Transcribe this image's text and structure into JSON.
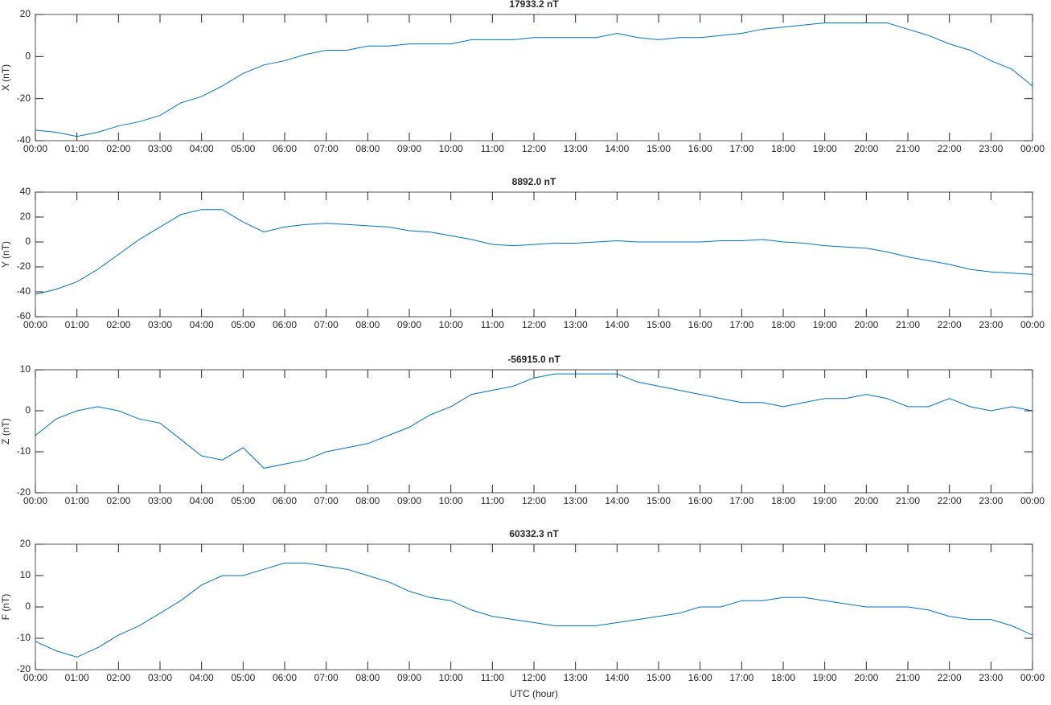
{
  "chart_data": [
    {
      "type": "line",
      "title": "17933.2 nT",
      "ylabel": "X (nT)",
      "color": "#0072bd",
      "x": [
        0,
        0.5,
        1,
        1.5,
        2,
        2.5,
        3,
        3.5,
        4,
        4.5,
        5,
        5.5,
        6,
        6.5,
        7,
        7.5,
        8,
        8.5,
        9,
        9.5,
        10,
        10.5,
        11,
        11.5,
        12,
        12.5,
        13,
        13.5,
        14,
        14.5,
        15,
        15.5,
        16,
        16.5,
        17,
        17.5,
        18,
        18.5,
        19,
        19.5,
        20,
        20.5,
        21,
        21.5,
        22,
        22.5,
        23,
        23.5,
        24
      ],
      "values": [
        -35,
        -36,
        -38,
        -36,
        -33,
        -31,
        -28,
        -22,
        -19,
        -14,
        -8,
        -4,
        -2,
        1,
        3,
        3,
        5,
        5,
        6,
        6,
        6,
        8,
        8,
        8,
        9,
        9,
        9,
        9,
        11,
        9,
        8,
        9,
        9,
        10,
        11,
        13,
        14,
        15,
        16,
        16,
        16,
        16,
        13,
        10,
        6,
        3,
        -2,
        -6,
        -14
      ],
      "xlim": [
        0,
        24
      ],
      "ylim": [
        -40,
        20
      ],
      "yticks": [
        -40,
        -20,
        0,
        20
      ],
      "xticks": [
        {
          "value": 0,
          "label": "00:00"
        },
        {
          "value": 1,
          "label": "01:00"
        },
        {
          "value": 2,
          "label": "02:00"
        },
        {
          "value": 3,
          "label": "03:00"
        },
        {
          "value": 4,
          "label": "04:00"
        },
        {
          "value": 5,
          "label": "05:00"
        },
        {
          "value": 6,
          "label": "06:00"
        },
        {
          "value": 7,
          "label": "07:00"
        },
        {
          "value": 8,
          "label": "08:00"
        },
        {
          "value": 9,
          "label": "09:00"
        },
        {
          "value": 10,
          "label": "10:00"
        },
        {
          "value": 11,
          "label": "11:00"
        },
        {
          "value": 12,
          "label": "12:00"
        },
        {
          "value": 13,
          "label": "13:00"
        },
        {
          "value": 14,
          "label": "14:00"
        },
        {
          "value": 15,
          "label": "15:00"
        },
        {
          "value": 16,
          "label": "16:00"
        },
        {
          "value": 17,
          "label": "17:00"
        },
        {
          "value": 18,
          "label": "18:00"
        },
        {
          "value": 19,
          "label": "19:00"
        },
        {
          "value": 20,
          "label": "20:00"
        },
        {
          "value": 21,
          "label": "21:00"
        },
        {
          "value": 22,
          "label": "22:00"
        },
        {
          "value": 23,
          "label": "23:00"
        },
        {
          "value": 24,
          "label": "00:00"
        }
      ]
    },
    {
      "type": "line",
      "title": "8892.0 nT",
      "ylabel": "Y (nT)",
      "color": "#0072bd",
      "x": [
        0,
        0.5,
        1,
        1.5,
        2,
        2.5,
        3,
        3.5,
        4,
        4.5,
        5,
        5.5,
        6,
        6.5,
        7,
        7.5,
        8,
        8.5,
        9,
        9.5,
        10,
        10.5,
        11,
        11.5,
        12,
        12.5,
        13,
        13.5,
        14,
        14.5,
        15,
        15.5,
        16,
        16.5,
        17,
        17.5,
        18,
        18.5,
        19,
        19.5,
        20,
        20.5,
        21,
        21.5,
        22,
        22.5,
        23,
        23.5,
        24
      ],
      "values": [
        -42,
        -38,
        -32,
        -22,
        -10,
        2,
        12,
        22,
        26,
        26,
        16,
        8,
        12,
        14,
        15,
        14,
        13,
        12,
        9,
        8,
        5,
        2,
        -2,
        -3,
        -2,
        -1,
        -1,
        0,
        1,
        0,
        0,
        0,
        0,
        1,
        1,
        2,
        0,
        -1,
        -3,
        -4,
        -5,
        -8,
        -12,
        -15,
        -18,
        -22,
        -24,
        -25,
        -26
      ],
      "xlim": [
        0,
        24
      ],
      "ylim": [
        -60,
        40
      ],
      "yticks": [
        -60,
        -40,
        -20,
        0,
        20,
        40
      ],
      "xticks": [
        {
          "value": 0,
          "label": "00:00"
        },
        {
          "value": 1,
          "label": "01:00"
        },
        {
          "value": 2,
          "label": "02:00"
        },
        {
          "value": 3,
          "label": "03:00"
        },
        {
          "value": 4,
          "label": "04:00"
        },
        {
          "value": 5,
          "label": "05:00"
        },
        {
          "value": 6,
          "label": "06:00"
        },
        {
          "value": 7,
          "label": "07:00"
        },
        {
          "value": 8,
          "label": "08:00"
        },
        {
          "value": 9,
          "label": "09:00"
        },
        {
          "value": 10,
          "label": "10:00"
        },
        {
          "value": 11,
          "label": "11:00"
        },
        {
          "value": 12,
          "label": "12:00"
        },
        {
          "value": 13,
          "label": "13:00"
        },
        {
          "value": 14,
          "label": "14:00"
        },
        {
          "value": 15,
          "label": "15:00"
        },
        {
          "value": 16,
          "label": "16:00"
        },
        {
          "value": 17,
          "label": "17:00"
        },
        {
          "value": 18,
          "label": "18:00"
        },
        {
          "value": 19,
          "label": "19:00"
        },
        {
          "value": 20,
          "label": "20:00"
        },
        {
          "value": 21,
          "label": "21:00"
        },
        {
          "value": 22,
          "label": "22:00"
        },
        {
          "value": 23,
          "label": "23:00"
        },
        {
          "value": 24,
          "label": "00:00"
        }
      ]
    },
    {
      "type": "line",
      "title": "-56915.0 nT",
      "ylabel": "Z (nT)",
      "color": "#0072bd",
      "x": [
        0,
        0.5,
        1,
        1.5,
        2,
        2.5,
        3,
        3.5,
        4,
        4.5,
        5,
        5.5,
        6,
        6.5,
        7,
        7.5,
        8,
        8.5,
        9,
        9.5,
        10,
        10.5,
        11,
        11.5,
        12,
        12.5,
        13,
        13.5,
        14,
        14.5,
        15,
        15.5,
        16,
        16.5,
        17,
        17.5,
        18,
        18.5,
        19,
        19.5,
        20,
        20.5,
        21,
        21.5,
        22,
        22.5,
        23,
        23.5,
        24
      ],
      "values": [
        -6,
        -2,
        0,
        1,
        0,
        -2,
        -3,
        -7,
        -11,
        -12,
        -9,
        -14,
        -13,
        -12,
        -10,
        -9,
        -8,
        -6,
        -4,
        -1,
        1,
        4,
        5,
        6,
        8,
        9,
        9,
        9,
        9,
        7,
        6,
        5,
        4,
        3,
        2,
        2,
        1,
        2,
        3,
        3,
        4,
        3,
        1,
        1,
        3,
        1,
        0,
        1,
        0
      ],
      "xlim": [
        0,
        24
      ],
      "ylim": [
        -20,
        10
      ],
      "yticks": [
        -20,
        -10,
        0,
        10
      ],
      "xticks": [
        {
          "value": 0,
          "label": "00:00"
        },
        {
          "value": 1,
          "label": "01:00"
        },
        {
          "value": 2,
          "label": "02:00"
        },
        {
          "value": 3,
          "label": "03:00"
        },
        {
          "value": 4,
          "label": "04:00"
        },
        {
          "value": 5,
          "label": "05:00"
        },
        {
          "value": 6,
          "label": "06:00"
        },
        {
          "value": 7,
          "label": "07:00"
        },
        {
          "value": 8,
          "label": "08:00"
        },
        {
          "value": 9,
          "label": "09:00"
        },
        {
          "value": 10,
          "label": "10:00"
        },
        {
          "value": 11,
          "label": "11:00"
        },
        {
          "value": 12,
          "label": "12:00"
        },
        {
          "value": 13,
          "label": "13:00"
        },
        {
          "value": 14,
          "label": "14:00"
        },
        {
          "value": 15,
          "label": "15:00"
        },
        {
          "value": 16,
          "label": "16:00"
        },
        {
          "value": 17,
          "label": "17:00"
        },
        {
          "value": 18,
          "label": "18:00"
        },
        {
          "value": 19,
          "label": "19:00"
        },
        {
          "value": 20,
          "label": "20:00"
        },
        {
          "value": 21,
          "label": "21:00"
        },
        {
          "value": 22,
          "label": "22:00"
        },
        {
          "value": 23,
          "label": "23:00"
        },
        {
          "value": 24,
          "label": "00:00"
        }
      ]
    },
    {
      "type": "line",
      "title": "60332.3 nT",
      "ylabel": "F (nT)",
      "xlabel": "UTC (hour)",
      "color": "#0072bd",
      "x": [
        0,
        0.5,
        1,
        1.5,
        2,
        2.5,
        3,
        3.5,
        4,
        4.5,
        5,
        5.5,
        6,
        6.5,
        7,
        7.5,
        8,
        8.5,
        9,
        9.5,
        10,
        10.5,
        11,
        11.5,
        12,
        12.5,
        13,
        13.5,
        14,
        14.5,
        15,
        15.5,
        16,
        16.5,
        17,
        17.5,
        18,
        18.5,
        19,
        19.5,
        20,
        20.5,
        21,
        21.5,
        22,
        22.5,
        23,
        23.5,
        24
      ],
      "values": [
        -11,
        -14,
        -16,
        -13,
        -9,
        -6,
        -2,
        2,
        7,
        10,
        10,
        12,
        14,
        14,
        13,
        12,
        10,
        8,
        5,
        3,
        2,
        -1,
        -3,
        -4,
        -5,
        -6,
        -6,
        -6,
        -5,
        -4,
        -3,
        -2,
        0,
        0,
        2,
        2,
        3,
        3,
        2,
        1,
        0,
        0,
        0,
        -1,
        -3,
        -4,
        -4,
        -6,
        -9
      ],
      "xlim": [
        0,
        24
      ],
      "ylim": [
        -20,
        20
      ],
      "yticks": [
        -20,
        -10,
        0,
        10,
        20
      ],
      "xticks": [
        {
          "value": 0,
          "label": "00:00"
        },
        {
          "value": 1,
          "label": "01:00"
        },
        {
          "value": 2,
          "label": "02:00"
        },
        {
          "value": 3,
          "label": "03:00"
        },
        {
          "value": 4,
          "label": "04:00"
        },
        {
          "value": 5,
          "label": "05:00"
        },
        {
          "value": 6,
          "label": "06:00"
        },
        {
          "value": 7,
          "label": "07:00"
        },
        {
          "value": 8,
          "label": "08:00"
        },
        {
          "value": 9,
          "label": "09:00"
        },
        {
          "value": 10,
          "label": "10:00"
        },
        {
          "value": 11,
          "label": "11:00"
        },
        {
          "value": 12,
          "label": "12:00"
        },
        {
          "value": 13,
          "label": "13:00"
        },
        {
          "value": 14,
          "label": "14:00"
        },
        {
          "value": 15,
          "label": "15:00"
        },
        {
          "value": 16,
          "label": "16:00"
        },
        {
          "value": 17,
          "label": "17:00"
        },
        {
          "value": 18,
          "label": "18:00"
        },
        {
          "value": 19,
          "label": "19:00"
        },
        {
          "value": 20,
          "label": "20:00"
        },
        {
          "value": 21,
          "label": "21:00"
        },
        {
          "value": 22,
          "label": "22:00"
        },
        {
          "value": 23,
          "label": "23:00"
        },
        {
          "value": 24,
          "label": "00:00"
        }
      ]
    }
  ]
}
